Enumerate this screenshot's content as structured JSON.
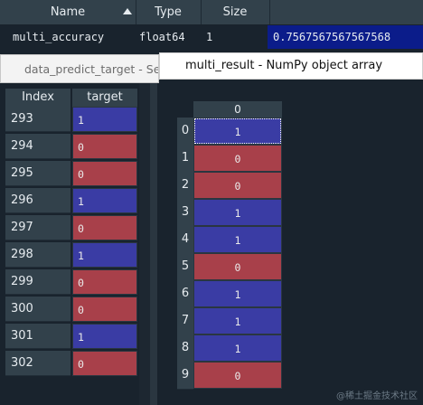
{
  "variable_explorer": {
    "columns": [
      "Name",
      "Type",
      "Size",
      ""
    ],
    "row": {
      "name": "multi_accuracy",
      "type": "float64",
      "size": "1",
      "value": "0.7567567567567568"
    },
    "colors": {
      "header_bg": "#32414b",
      "value_bg": "#0b1c8a"
    }
  },
  "series_window": {
    "title": "data_predict_target - Series",
    "index_header": "Index",
    "column_header": "target",
    "rows": [
      {
        "index": "293",
        "value": "1"
      },
      {
        "index": "294",
        "value": "0"
      },
      {
        "index": "295",
        "value": "0"
      },
      {
        "index": "296",
        "value": "1"
      },
      {
        "index": "297",
        "value": "0"
      },
      {
        "index": "298",
        "value": "1"
      },
      {
        "index": "299",
        "value": "0"
      },
      {
        "index": "300",
        "value": "0"
      },
      {
        "index": "301",
        "value": "1"
      },
      {
        "index": "302",
        "value": "0"
      }
    ]
  },
  "array_window": {
    "title": "multi_result - NumPy object array",
    "column_header": "0",
    "rows": [
      {
        "index": "0",
        "value": "1"
      },
      {
        "index": "1",
        "value": "0"
      },
      {
        "index": "2",
        "value": "0"
      },
      {
        "index": "3",
        "value": "1"
      },
      {
        "index": "4",
        "value": "1"
      },
      {
        "index": "5",
        "value": "0"
      },
      {
        "index": "6",
        "value": "1"
      },
      {
        "index": "7",
        "value": "1"
      },
      {
        "index": "8",
        "value": "1"
      },
      {
        "index": "9",
        "value": "0"
      }
    ]
  },
  "cell_colors": {
    "one": "#3a3ca4",
    "zero": "#a8404a"
  },
  "watermark": "@稀土掘金技术社区"
}
